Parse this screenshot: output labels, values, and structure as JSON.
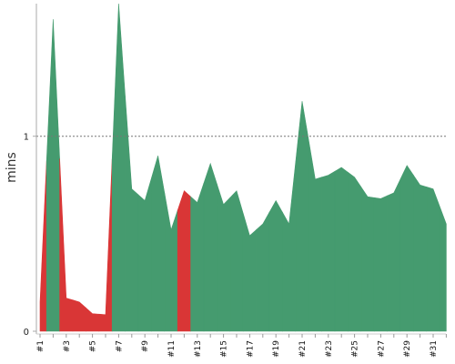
{
  "chart_data": {
    "type": "area",
    "ylabel": "mins",
    "xlabel": "",
    "ylim": [
      0,
      1.68
    ],
    "yticks": [
      0,
      1
    ],
    "grid": {
      "horizontal_at": [
        1
      ],
      "style": "dotted"
    },
    "x": [
      "#1",
      "#2",
      "#3",
      "#4",
      "#5",
      "#6",
      "#7",
      "#8",
      "#9",
      "#10",
      "#11",
      "#12",
      "#13",
      "#14",
      "#15",
      "#16",
      "#17",
      "#18",
      "#19",
      "#20",
      "#21",
      "#22",
      "#23",
      "#24",
      "#25",
      "#26",
      "#27",
      "#28",
      "#29",
      "#30",
      "#31",
      "#32"
    ],
    "x_tick_labels": [
      "#1",
      "#3",
      "#5",
      "#7",
      "#9",
      "#11",
      "#13",
      "#15",
      "#17",
      "#19",
      "#21",
      "#23",
      "#25",
      "#27",
      "#29",
      "#31"
    ],
    "values": [
      0.15,
      1.6,
      0.17,
      0.15,
      0.09,
      0.085,
      1.68,
      0.73,
      0.67,
      0.9,
      0.52,
      0.72,
      0.66,
      0.86,
      0.65,
      0.72,
      0.49,
      0.55,
      0.67,
      0.55,
      1.18,
      0.78,
      0.8,
      0.84,
      0.79,
      0.69,
      0.68,
      0.71,
      0.85,
      0.75,
      0.73,
      0.55
    ],
    "status": [
      "fail",
      "pass",
      "fail",
      "fail",
      "fail",
      "fail",
      "pass",
      "pass",
      "pass",
      "pass",
      "pass",
      "fail",
      "pass",
      "pass",
      "pass",
      "pass",
      "pass",
      "pass",
      "pass",
      "pass",
      "pass",
      "pass",
      "pass",
      "pass",
      "pass",
      "pass",
      "pass",
      "pass",
      "pass",
      "pass",
      "pass",
      "pass"
    ],
    "colors": {
      "pass": "#459b6f",
      "fail": "#d93636",
      "grid": "#777777",
      "axis": "#aaaaaa"
    }
  }
}
